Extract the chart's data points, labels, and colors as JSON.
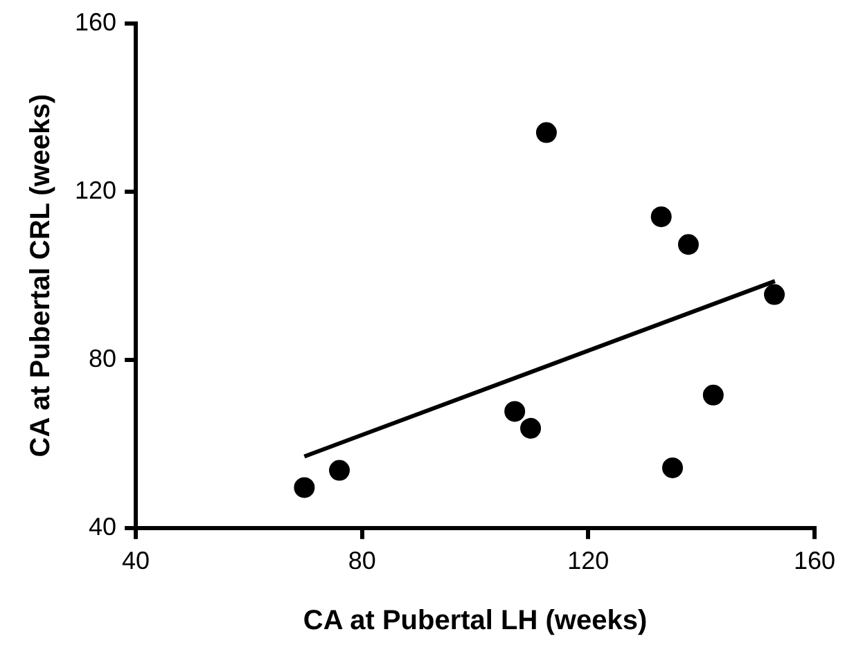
{
  "chart_data": {
    "type": "scatter",
    "xlabel": "CA at Pubertal LH (weeks)",
    "ylabel": "CA at Pubertal CRL (weeks)",
    "xlim": [
      40,
      160
    ],
    "xticks": [
      40,
      80,
      120,
      160
    ],
    "ylim": [
      40,
      160
    ],
    "yticks": [
      40,
      80,
      120,
      160
    ],
    "grid": false,
    "legend": false,
    "marker": "circle",
    "series": [
      {
        "color": "#000000",
        "x": [
          69.8,
          76,
          107,
          109.8,
          112.6,
          132.9,
          137.7,
          134.9,
          142.1,
          152.9
        ],
        "values": [
          49.6,
          53.7,
          67.7,
          63.7,
          134,
          114,
          107.4,
          54.3,
          71.6,
          95.5
        ]
      },
      {
        "type": "line",
        "color": "#000000",
        "x": [
          69.8,
          153
        ],
        "values": [
          57,
          98.7
        ],
        "marker": "none",
        "line_style": "solid"
      }
    ]
  }
}
